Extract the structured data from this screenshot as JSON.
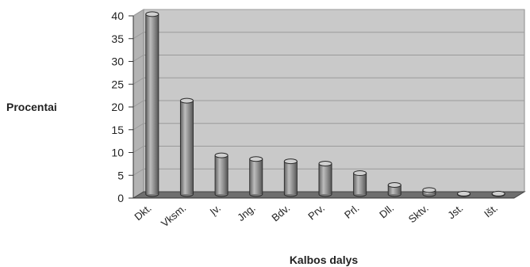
{
  "chart_data": {
    "type": "bar",
    "title": "",
    "xlabel": "Kalbos dalys",
    "ylabel": "Procentai",
    "categories": [
      "Dkt.",
      "Vksm.",
      "Įv.",
      "Jng.",
      "Bdv.",
      "Prv.",
      "Prl.",
      "Dll.",
      "Sktv.",
      "Jst.",
      "Išt."
    ],
    "values": [
      39.5,
      20.5,
      8.5,
      7.7,
      7.2,
      6.7,
      4.6,
      2.0,
      0.9,
      0.1,
      0.1
    ],
    "ylim": [
      0,
      40
    ],
    "yticks": [
      0,
      5,
      10,
      15,
      20,
      25,
      30,
      35,
      40
    ],
    "grid": true,
    "legend": "none",
    "colors": {
      "plot_bg": "#c9c9c9",
      "floor": "#6e6e6e",
      "bar": "#8f8f8f",
      "bar_edge": "#2b2b2b"
    }
  }
}
